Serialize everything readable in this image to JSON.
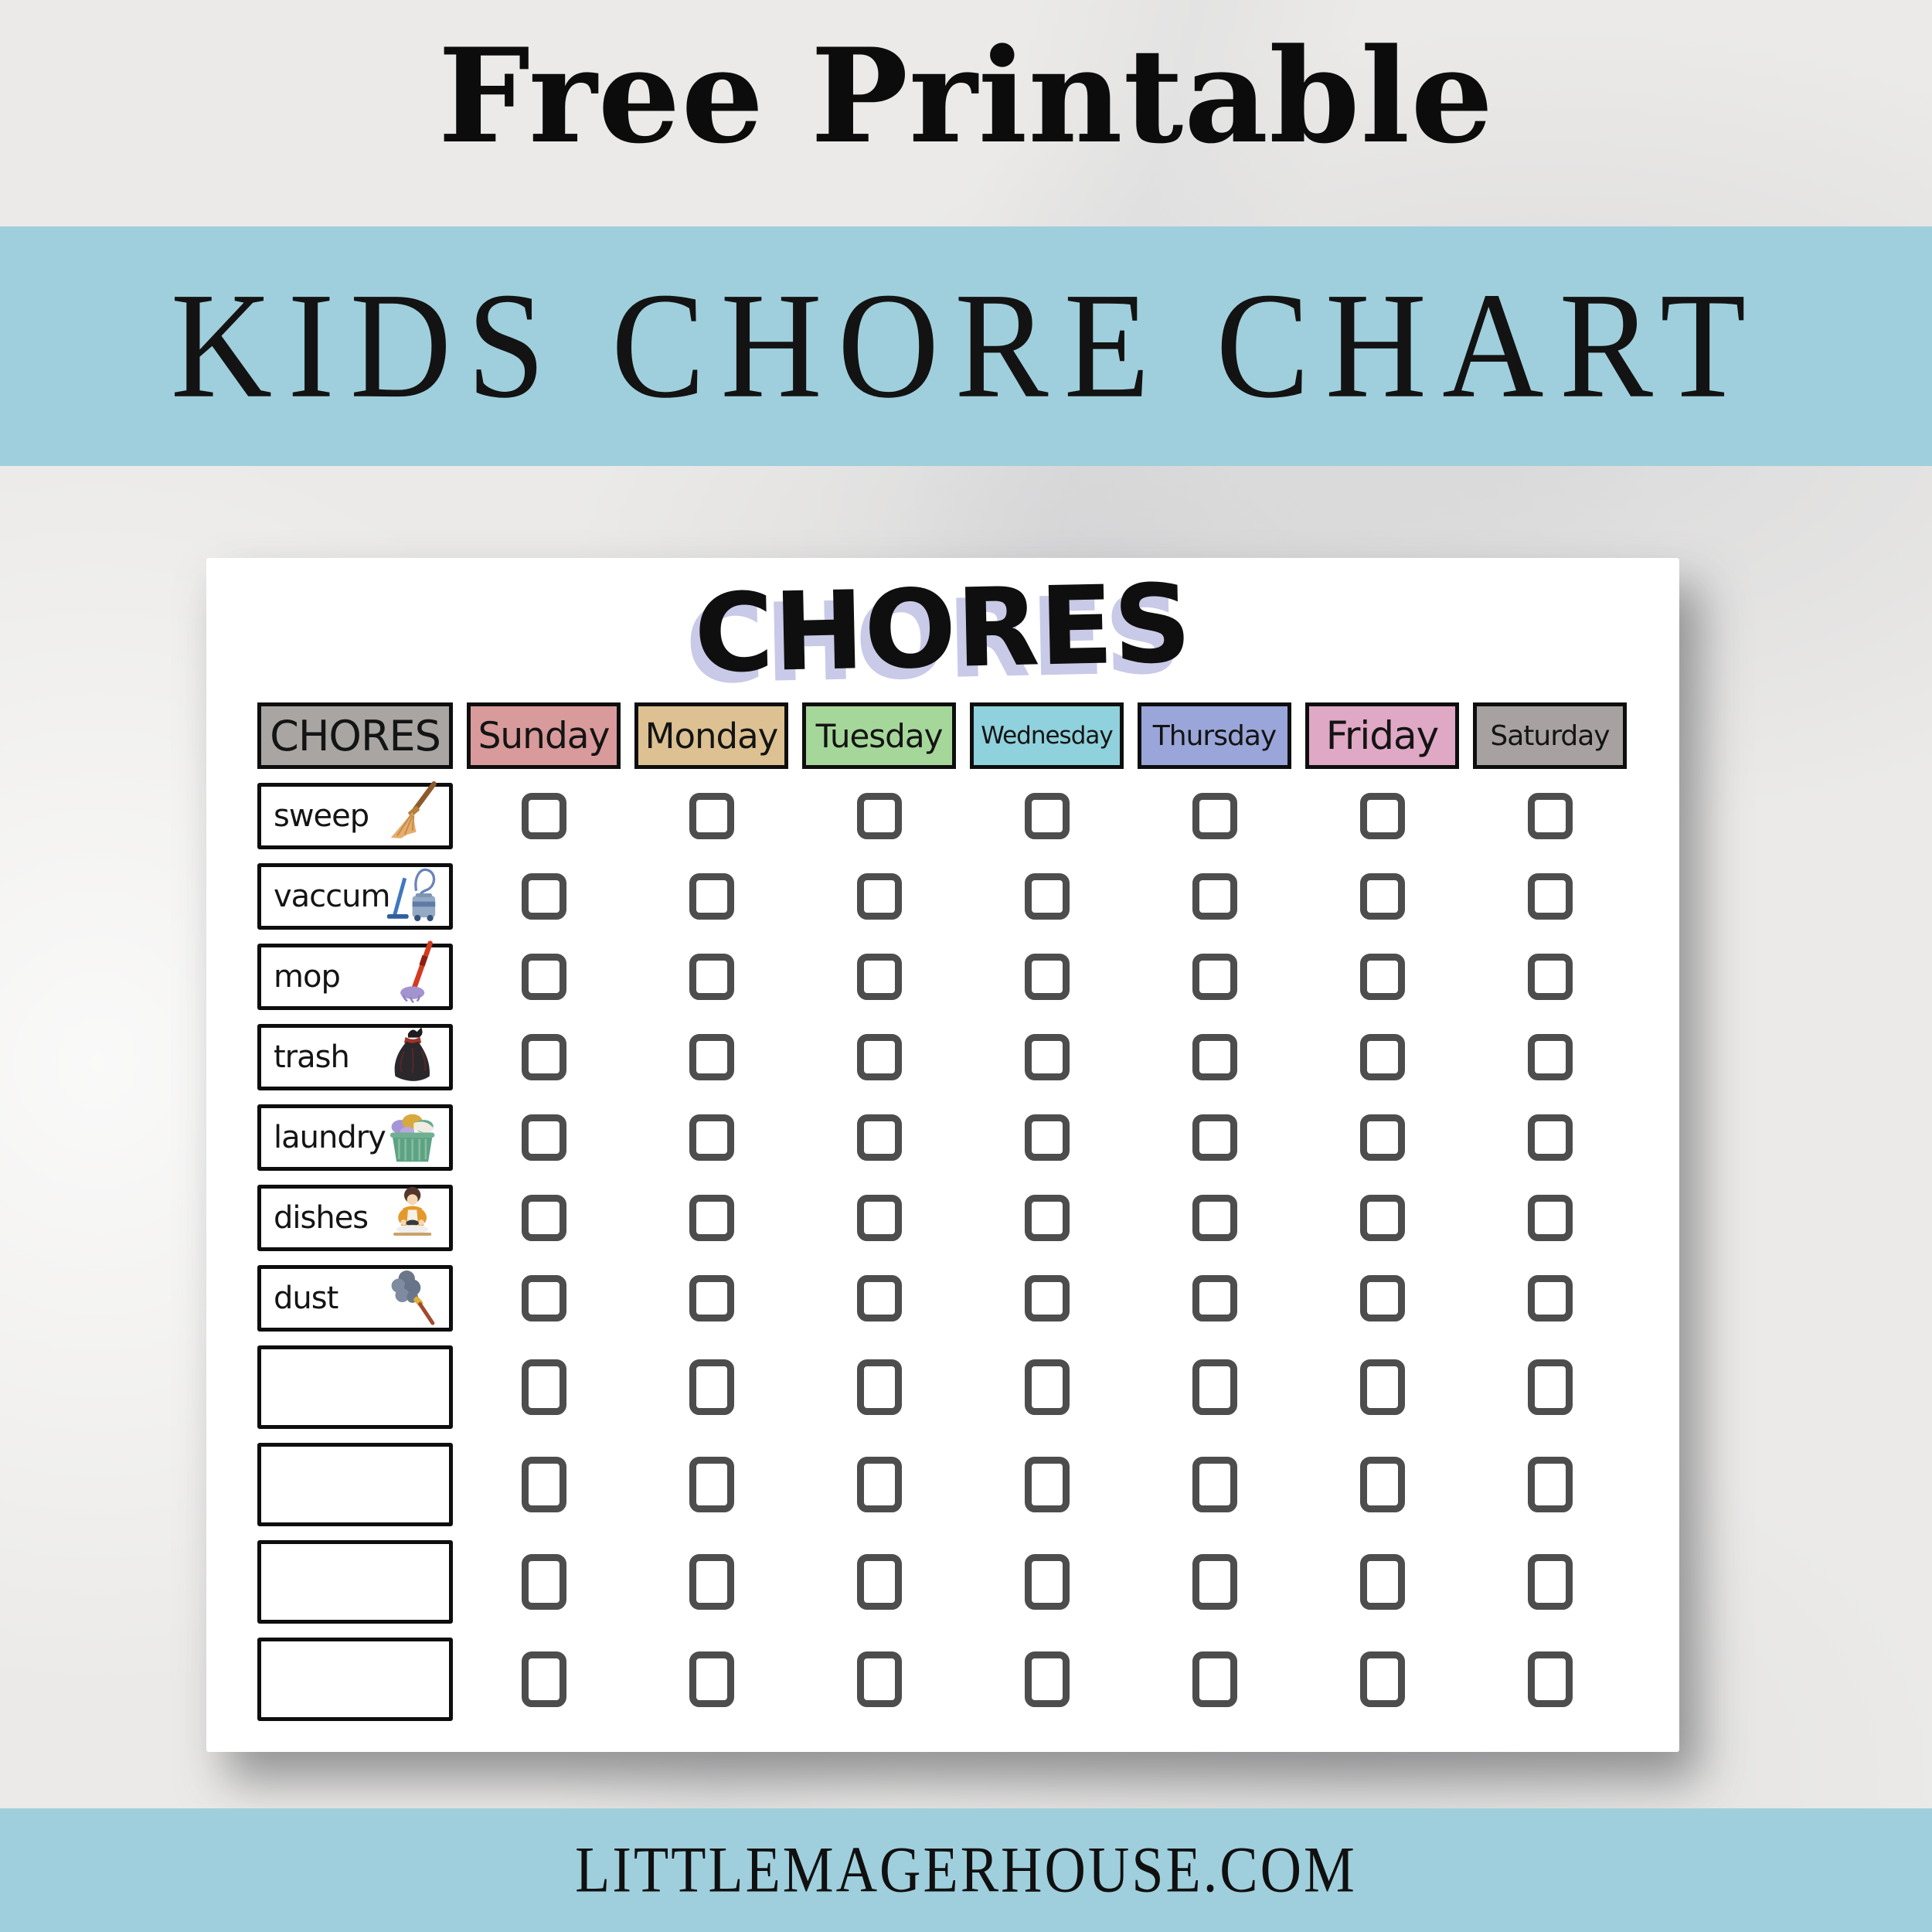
{
  "page": {
    "top_title": "Free Printable",
    "banner_title": "KIDS CHORE CHART",
    "footer_url": "LITTLEMAGERHOUSE.COM",
    "background_color": "#ebeae8",
    "band_color": "#9fcfdc",
    "card_color": "#ffffff"
  },
  "chart": {
    "title": "CHORES",
    "title_shadow_color": "#c9c9e8",
    "checkbox_state": "unchecked",
    "checkbox_border_color": "#4d4d4d",
    "header": {
      "chores_label": "CHORES",
      "chores_color": "#a9a5a3",
      "days": [
        {
          "label": "Sunday",
          "color": "#d89a9a"
        },
        {
          "label": "Monday",
          "color": "#ddc192"
        },
        {
          "label": "Tuesday",
          "color": "#a6d79a"
        },
        {
          "label": "Wednesday",
          "color": "#8fd1dc"
        },
        {
          "label": "Thursday",
          "color": "#9aa6d9"
        },
        {
          "label": "Friday",
          "color": "#dfa8c5"
        },
        {
          "label": "Saturday",
          "color": "#a7a1a1"
        }
      ]
    },
    "rows": [
      {
        "label": "sweep",
        "icon": "broom-icon"
      },
      {
        "label": "vaccum",
        "icon": "vacuum-icon"
      },
      {
        "label": "mop",
        "icon": "mop-icon"
      },
      {
        "label": "trash",
        "icon": "trash-bag-icon"
      },
      {
        "label": "laundry",
        "icon": "laundry-basket-icon"
      },
      {
        "label": "dishes",
        "icon": "dishes-kid-icon"
      },
      {
        "label": "dust",
        "icon": "feather-duster-icon"
      },
      {
        "label": "",
        "icon": ""
      },
      {
        "label": "",
        "icon": ""
      },
      {
        "label": "",
        "icon": ""
      },
      {
        "label": "",
        "icon": ""
      }
    ]
  }
}
